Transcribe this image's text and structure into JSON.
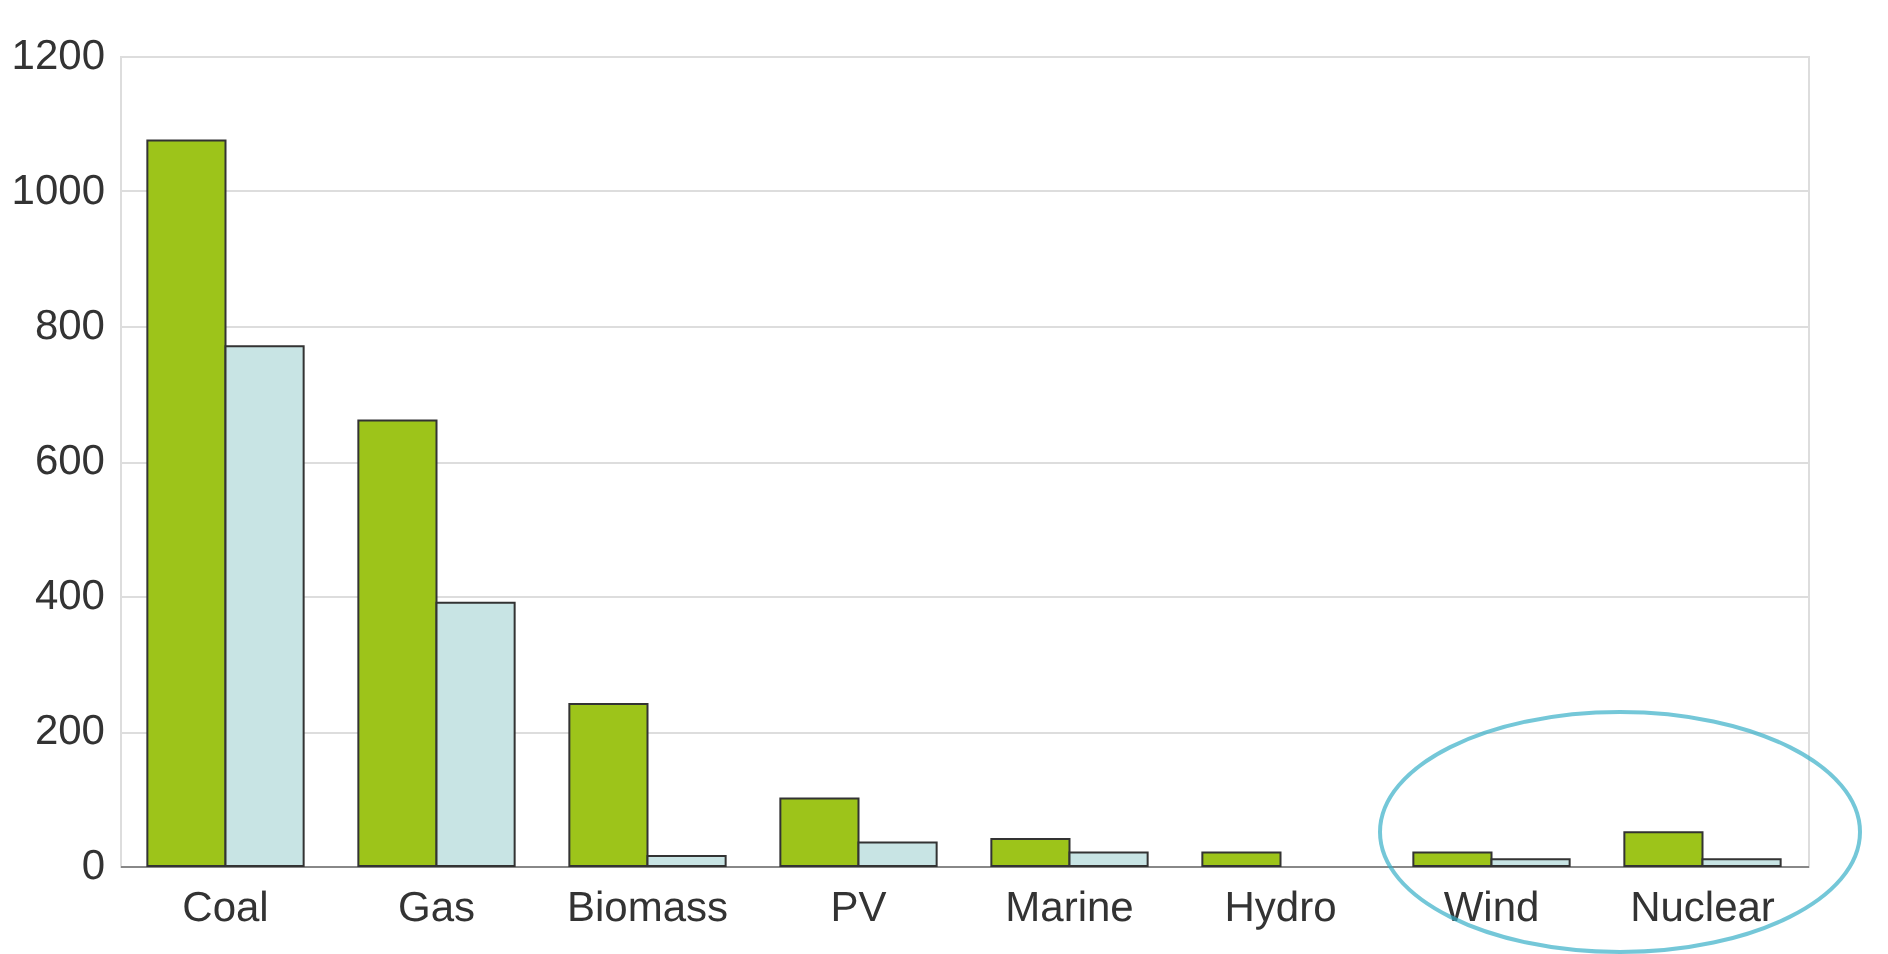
{
  "chart_data": {
    "type": "bar",
    "categories": [
      "Coal",
      "Gas",
      "Biomass",
      "PV",
      "Marine",
      "Hydro",
      "Wind",
      "Nuclear"
    ],
    "series": [
      {
        "color": "#9dc41a",
        "values": [
          1075,
          660,
          240,
          100,
          40,
          20,
          20,
          50
        ]
      },
      {
        "color": "#c8e4e4",
        "values": [
          770,
          390,
          15,
          35,
          20,
          null,
          10,
          10
        ]
      }
    ],
    "ylim": [
      0,
      1200
    ],
    "yticks": [
      0,
      200,
      400,
      600,
      800,
      1000,
      1200
    ],
    "grid": "y"
  }
}
